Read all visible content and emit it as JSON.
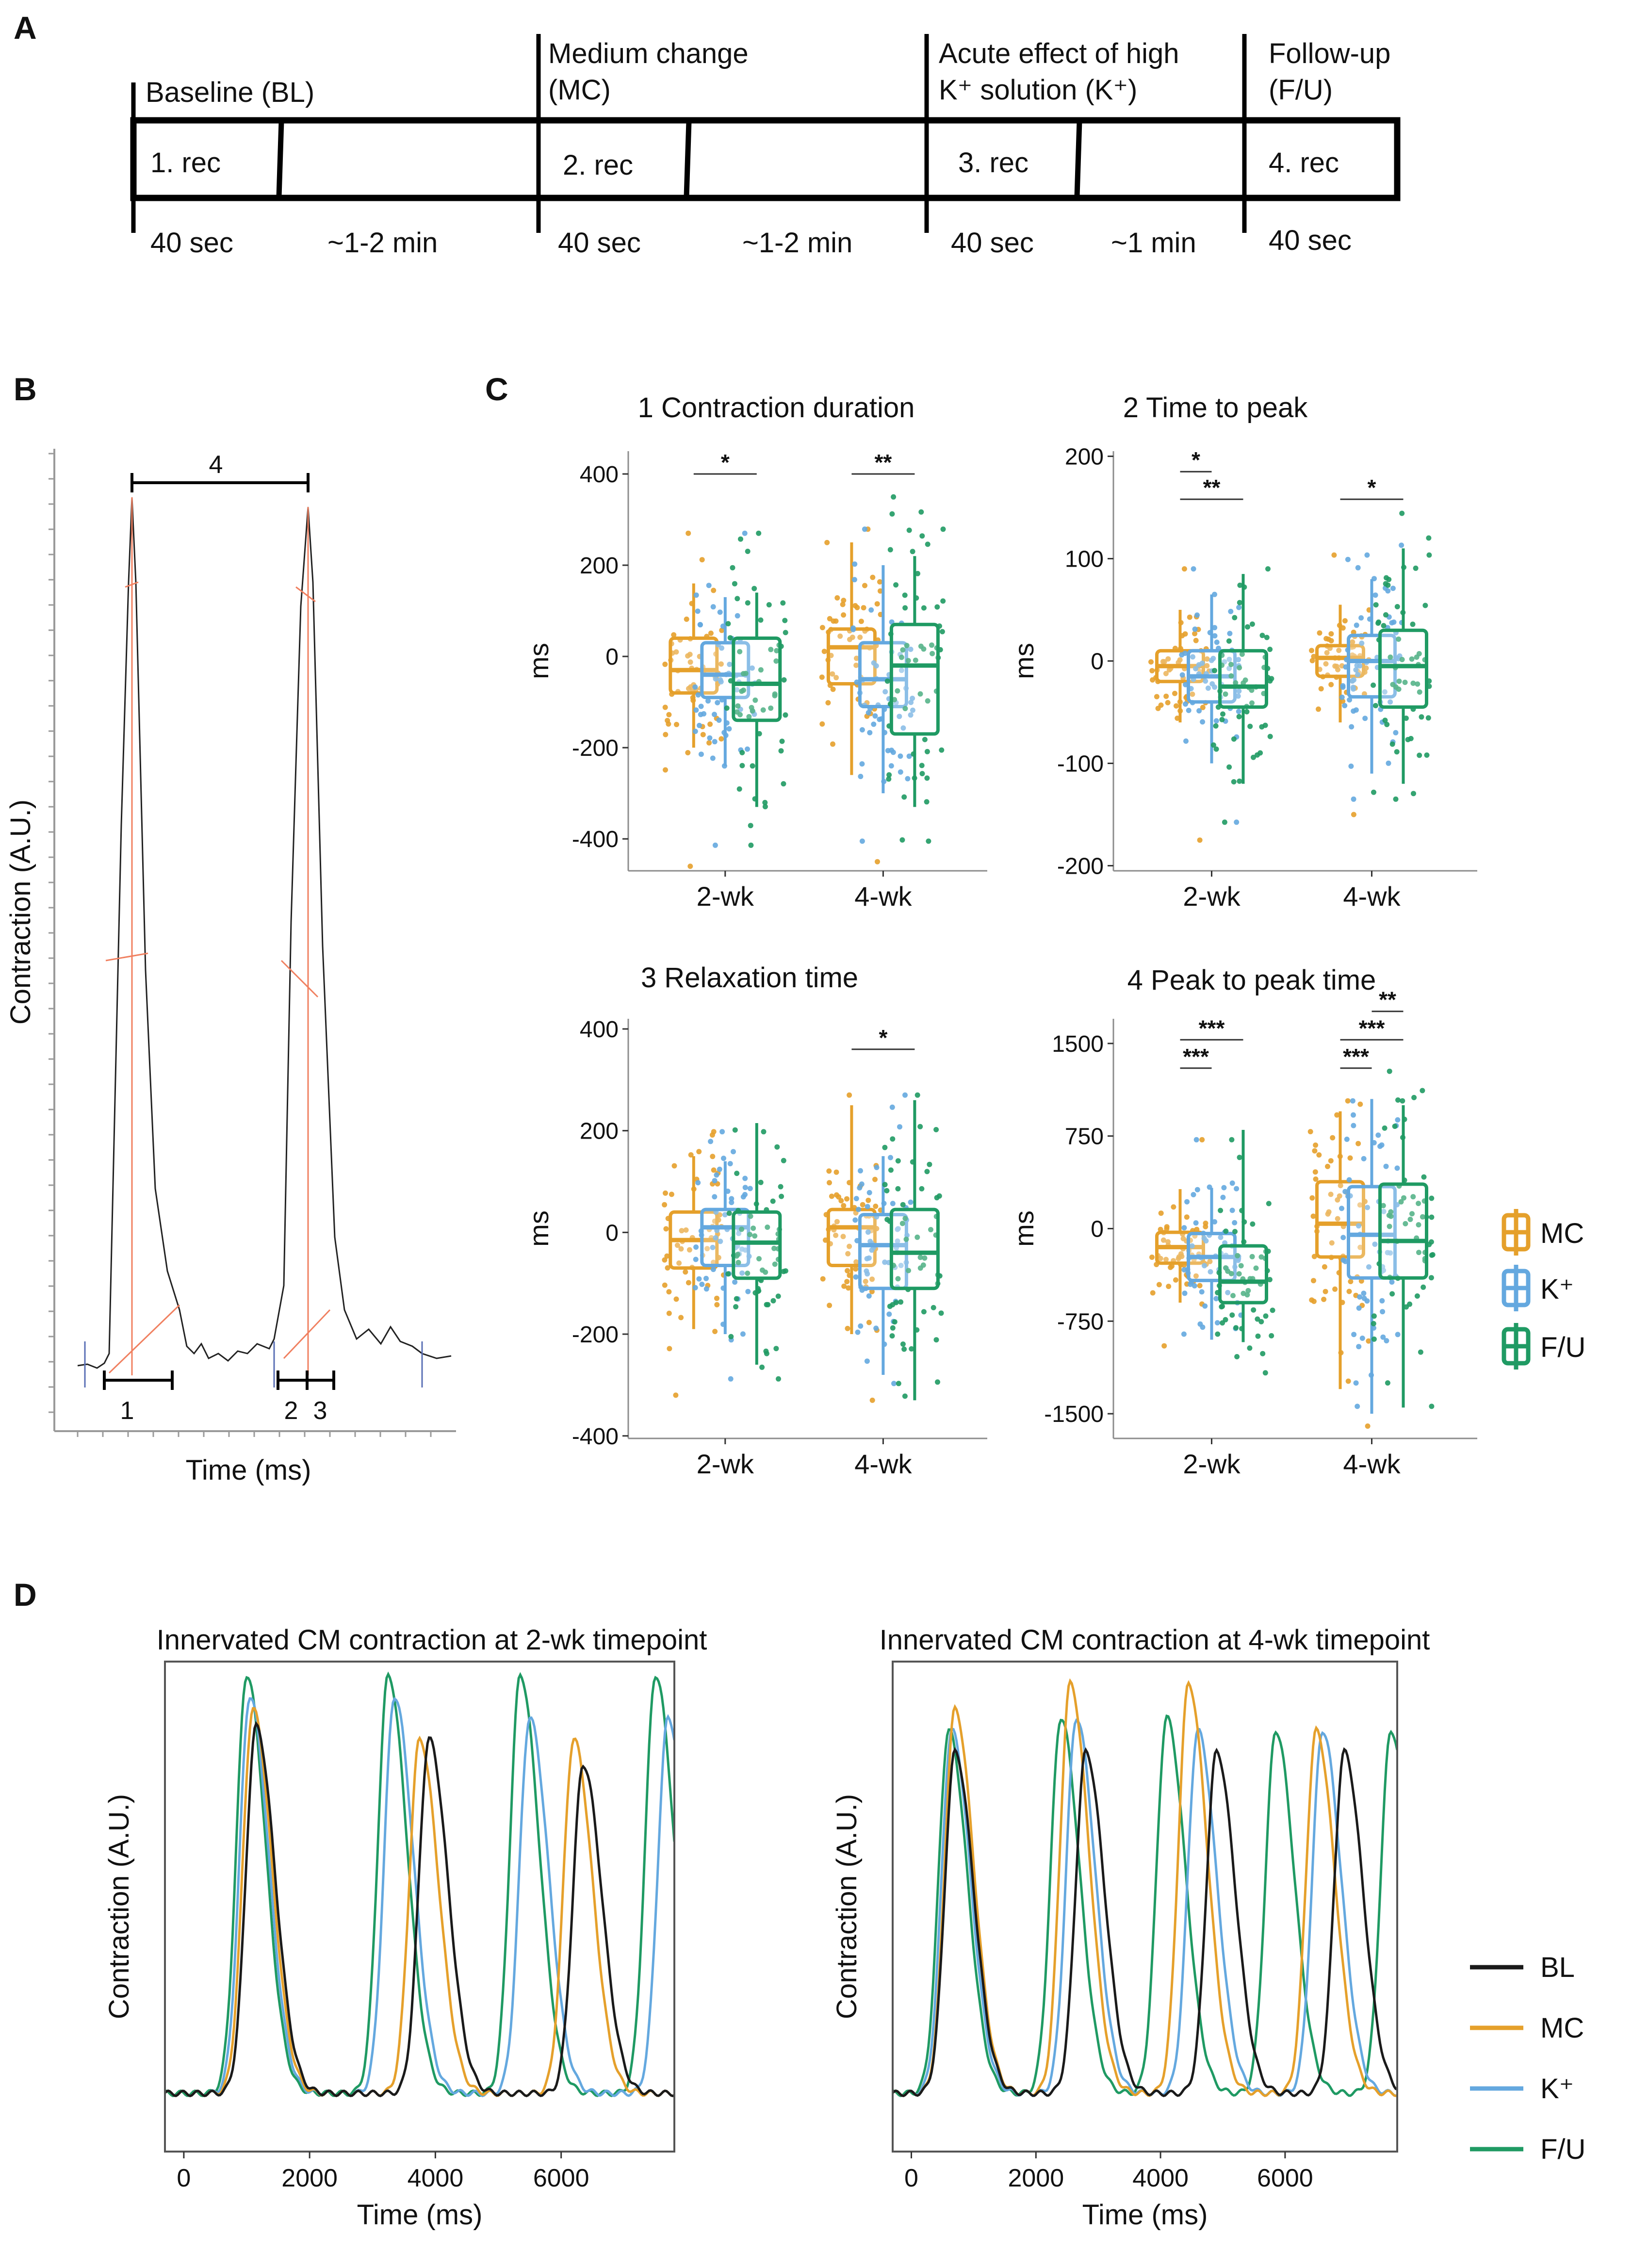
{
  "colors": {
    "MC": "#E5A02B",
    "K": "#64A8DF",
    "FU": "#1F9A63",
    "BL": "#1a1a1a",
    "fit": "#F08060",
    "marker": "#5a6fb5"
  },
  "panel_A": {
    "letter": "A",
    "phases": [
      {
        "id": "bl",
        "title_lines": [
          "Baseline (BL)"
        ],
        "rec": "1. rec",
        "rec_dur": "40 sec",
        "gap_dur": "~1-2 min"
      },
      {
        "id": "mc",
        "title_lines": [
          "Medium change",
          "(MC)"
        ],
        "rec": "2. rec",
        "rec_dur": "40 sec",
        "gap_dur": "~1-2 min"
      },
      {
        "id": "k",
        "title_lines": [
          "Acute effect of high",
          "K⁺ solution (K⁺)"
        ],
        "rec": "3. rec",
        "rec_dur": "40 sec",
        "gap_dur": "~1 min"
      },
      {
        "id": "fu",
        "title_lines": [
          "Follow-up",
          "(F/U)"
        ],
        "rec": "4. rec",
        "rec_dur": "40 sec",
        "gap_dur": ""
      }
    ]
  },
  "panel_B": {
    "letter": "B",
    "ylabel": "Contraction (A.U.)",
    "xlabel": "Time (ms)",
    "markers": [
      "1",
      "2",
      "3",
      "4"
    ]
  },
  "panel_C": {
    "letter": "C",
    "legend": [
      "MC",
      "K⁺",
      "F/U"
    ]
  },
  "panel_D": {
    "letter": "D",
    "legend": [
      "BL",
      "MC",
      "K⁺",
      "F/U"
    ]
  },
  "chart_data": [
    {
      "type": "box",
      "title": "1 Contraction duration",
      "ylabel": "ms",
      "categories": [
        "2-wk",
        "4-wk"
      ],
      "groups": [
        "MC",
        "K⁺",
        "F/U"
      ],
      "ylim": [
        -470,
        450
      ],
      "yticks": [
        -400,
        -200,
        0,
        200,
        400
      ],
      "boxes": [
        [
          {
            "q1": -80,
            "med": -30,
            "q3": 40,
            "lo": -200,
            "hi": 160
          },
          {
            "q1": -90,
            "med": -40,
            "q3": 30,
            "lo": -240,
            "hi": 130
          },
          {
            "q1": -140,
            "med": -60,
            "q3": 40,
            "lo": -330,
            "hi": 140
          }
        ],
        [
          {
            "q1": -60,
            "med": 20,
            "q3": 60,
            "lo": -260,
            "hi": 250
          },
          {
            "q1": -110,
            "med": -50,
            "q3": 30,
            "lo": -300,
            "hi": 200
          },
          {
            "q1": -170,
            "med": -20,
            "q3": 70,
            "lo": -330,
            "hi": 220
          }
        ]
      ],
      "points_range": [
        [
          -460,
          300
        ],
        [
          -450,
          310
        ]
      ],
      "significance": [
        {
          "cat": 0,
          "from": 0,
          "to": 2,
          "label": "*",
          "y": 400
        },
        {
          "cat": 1,
          "from": 0,
          "to": 2,
          "label": "**",
          "y": 400
        }
      ]
    },
    {
      "type": "box",
      "title": "2 Time to peak",
      "ylabel": "ms",
      "categories": [
        "2-wk",
        "4-wk"
      ],
      "groups": [
        "MC",
        "K⁺",
        "F/U"
      ],
      "ylim": [
        -205,
        205
      ],
      "yticks": [
        -200,
        -100,
        0,
        100,
        200
      ],
      "boxes": [
        [
          {
            "q1": -20,
            "med": -5,
            "q3": 10,
            "lo": -60,
            "hi": 50
          },
          {
            "q1": -40,
            "med": -15,
            "q3": 10,
            "lo": -100,
            "hi": 65
          },
          {
            "q1": -45,
            "med": -25,
            "q3": 10,
            "lo": -120,
            "hi": 85
          }
        ],
        [
          {
            "q1": -15,
            "med": 3,
            "q3": 15,
            "lo": -60,
            "hi": 55
          },
          {
            "q1": -35,
            "med": 0,
            "q3": 25,
            "lo": -110,
            "hi": 80
          },
          {
            "q1": -45,
            "med": -5,
            "q3": 30,
            "lo": -120,
            "hi": 110
          }
        ]
      ],
      "points_range": [
        [
          -175,
          100
        ],
        [
          -150,
          115
        ]
      ],
      "significance": [
        {
          "cat": 0,
          "from": 0,
          "to": 1,
          "label": "*",
          "y": 185
        },
        {
          "cat": 0,
          "from": 0,
          "to": 2,
          "label": "**",
          "y": 158
        },
        {
          "cat": 1,
          "from": 0,
          "to": 2,
          "label": "*",
          "y": 158
        }
      ]
    },
    {
      "type": "box",
      "title": "3 Relaxation time",
      "ylabel": "ms",
      "categories": [
        "2-wk",
        "4-wk"
      ],
      "groups": [
        "MC",
        "K⁺",
        "F/U"
      ],
      "ylim": [
        -405,
        420
      ],
      "yticks": [
        -400,
        -200,
        0,
        200,
        400
      ],
      "boxes": [
        [
          {
            "q1": -70,
            "med": -15,
            "q3": 40,
            "lo": -190,
            "hi": 150
          },
          {
            "q1": -65,
            "med": 10,
            "q3": 45,
            "lo": -200,
            "hi": 140
          },
          {
            "q1": -90,
            "med": -20,
            "q3": 40,
            "lo": -260,
            "hi": 215
          }
        ],
        [
          {
            "q1": -65,
            "med": 10,
            "q3": 45,
            "lo": -200,
            "hi": 250
          },
          {
            "q1": -110,
            "med": -25,
            "q3": 35,
            "lo": -280,
            "hi": 150
          },
          {
            "q1": -110,
            "med": -40,
            "q3": 45,
            "lo": -330,
            "hi": 260
          }
        ]
      ],
      "points_range": [
        [
          -320,
          220
        ],
        [
          -330,
          300
        ]
      ],
      "significance": [
        {
          "cat": 1,
          "from": 0,
          "to": 2,
          "label": "*",
          "y": 360
        }
      ]
    },
    {
      "type": "box",
      "title": "4 Peak to peak time",
      "ylabel": "ms",
      "categories": [
        "2-wk",
        "4-wk"
      ],
      "groups": [
        "MC",
        "K⁺",
        "F/U"
      ],
      "ylim": [
        -1700,
        1700
      ],
      "yticks": [
        -1500,
        -750,
        0,
        750,
        1500
      ],
      "boxes": [
        [
          {
            "q1": -280,
            "med": -150,
            "q3": -30,
            "lo": -600,
            "hi": 320
          },
          {
            "q1": -420,
            "med": -230,
            "q3": -40,
            "lo": -900,
            "hi": 330
          },
          {
            "q1": -600,
            "med": -430,
            "q3": -140,
            "lo": -920,
            "hi": 800
          }
        ],
        [
          {
            "q1": -230,
            "med": 40,
            "q3": 380,
            "lo": -1300,
            "hi": 950
          },
          {
            "q1": -400,
            "med": -50,
            "q3": 340,
            "lo": -1500,
            "hi": 1050
          },
          {
            "q1": -400,
            "med": -100,
            "q3": 360,
            "lo": -1450,
            "hi": 1000
          }
        ]
      ],
      "points_range": [
        [
          -950,
          800
        ],
        [
          -1600,
          1150
        ]
      ],
      "significance": [
        {
          "cat": 0,
          "from": 0,
          "to": 1,
          "label": "***",
          "y": 1300
        },
        {
          "cat": 0,
          "from": 0,
          "to": 2,
          "label": "***",
          "y": 1530
        },
        {
          "cat": 1,
          "from": 0,
          "to": 1,
          "label": "***",
          "y": 1300
        },
        {
          "cat": 1,
          "from": 0,
          "to": 2,
          "label": "***",
          "y": 1530
        },
        {
          "cat": 1,
          "from": 1,
          "to": 2,
          "label": "**",
          "y": 1760
        }
      ]
    },
    {
      "type": "line",
      "title": "Innervated CM contraction at 2-wk timepoint",
      "xlabel": "Time (ms)",
      "ylabel": "Contraction (A.U.)",
      "xlim": [
        -300,
        7800
      ],
      "xticks": [
        0,
        2000,
        4000,
        6000
      ],
      "series": [
        {
          "name": "BL",
          "peaks": [
            {
              "t": 1150,
              "a": 0.86
            },
            {
              "t": 3900,
              "a": 0.83
            },
            {
              "t": 6350,
              "a": 0.77
            }
          ]
        },
        {
          "name": "MC",
          "peaks": [
            {
              "t": 1100,
              "a": 0.9
            },
            {
              "t": 3750,
              "a": 0.83
            },
            {
              "t": 6200,
              "a": 0.83
            }
          ]
        },
        {
          "name": "K⁺",
          "peaks": [
            {
              "t": 1050,
              "a": 0.93
            },
            {
              "t": 3350,
              "a": 0.93
            },
            {
              "t": 5500,
              "a": 0.88
            },
            {
              "t": 7700,
              "a": 0.88
            }
          ]
        },
        {
          "name": "F/U",
          "peaks": [
            {
              "t": 1000,
              "a": 0.98
            },
            {
              "t": 3250,
              "a": 0.98
            },
            {
              "t": 5350,
              "a": 0.98
            },
            {
              "t": 7500,
              "a": 0.98
            }
          ]
        }
      ]
    },
    {
      "type": "line",
      "title": "Innervated CM contraction at 4-wk timepoint",
      "xlabel": "Time (ms)",
      "ylabel": "Contraction (A.U.)",
      "xlim": [
        -300,
        7800
      ],
      "xticks": [
        0,
        2000,
        4000,
        6000
      ],
      "series": [
        {
          "name": "BL",
          "peaks": [
            {
              "t": 700,
              "a": 0.8
            },
            {
              "t": 2800,
              "a": 0.8
            },
            {
              "t": 4900,
              "a": 0.8
            },
            {
              "t": 6950,
              "a": 0.8
            }
          ]
        },
        {
          "name": "MC",
          "peaks": [
            {
              "t": 700,
              "a": 0.9
            },
            {
              "t": 2550,
              "a": 0.96
            },
            {
              "t": 4450,
              "a": 0.96
            },
            {
              "t": 6500,
              "a": 0.85
            }
          ]
        },
        {
          "name": "K⁺",
          "peaks": [
            {
              "t": 650,
              "a": 0.85
            },
            {
              "t": 2650,
              "a": 0.88
            },
            {
              "t": 4600,
              "a": 0.85
            },
            {
              "t": 6600,
              "a": 0.85
            }
          ]
        },
        {
          "name": "F/U",
          "peaks": [
            {
              "t": 600,
              "a": 0.85
            },
            {
              "t": 2400,
              "a": 0.88
            },
            {
              "t": 4100,
              "a": 0.88
            },
            {
              "t": 5850,
              "a": 0.85
            },
            {
              "t": 7700,
              "a": 0.85
            }
          ]
        }
      ]
    }
  ]
}
